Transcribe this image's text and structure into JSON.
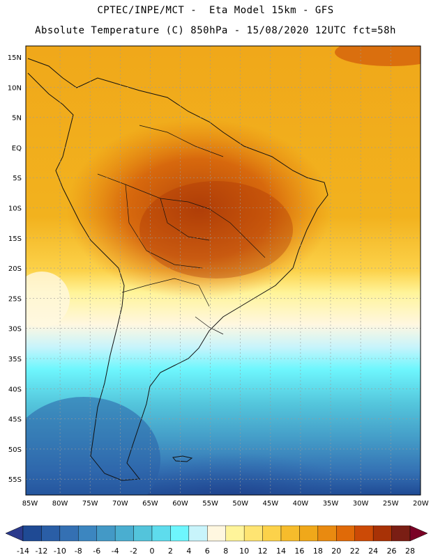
{
  "header": {
    "line1": "CPTEC/INPE/MCT -  Eta Model 15km - GFS",
    "line2": "Absolute Temperature (C) 850hPa - 15/08/2020 12UTC fct=58h"
  },
  "axes": {
    "lat_labels": [
      "15N",
      "10N",
      "5N",
      "EQ",
      "5S",
      "10S",
      "15S",
      "20S",
      "25S",
      "30S",
      "35S",
      "40S",
      "45S",
      "50S",
      "55S"
    ],
    "lon_labels": [
      "85W",
      "80W",
      "75W",
      "70W",
      "65W",
      "60W",
      "55W",
      "50W",
      "45W",
      "40W",
      "35W",
      "30W",
      "25W",
      "20W"
    ],
    "gridlines": "dashed"
  },
  "colorbar": {
    "labels": [
      "-14",
      "-12",
      "-10",
      "-8",
      "-6",
      "-4",
      "-2",
      "0",
      "2",
      "4",
      "6",
      "8",
      "10",
      "12",
      "14",
      "16",
      "18",
      "20",
      "22",
      "24",
      "26",
      "28"
    ],
    "colors": [
      "#1f4a94",
      "#2a5ea6",
      "#3470b3",
      "#3c86c0",
      "#4399c6",
      "#4aaed0",
      "#53c4db",
      "#5edced",
      "#6ef6fd",
      "#c8f4fb",
      "#fff7e0",
      "#fff49a",
      "#fee472",
      "#fcd24a",
      "#f6bc2c",
      "#f0a81a",
      "#e98a10",
      "#e06a08",
      "#cc4a06",
      "#a83206",
      "#7a1e14"
    ],
    "arrow_colors": {
      "low": "#2b3a8c",
      "high": "#7a0025"
    }
  }
}
